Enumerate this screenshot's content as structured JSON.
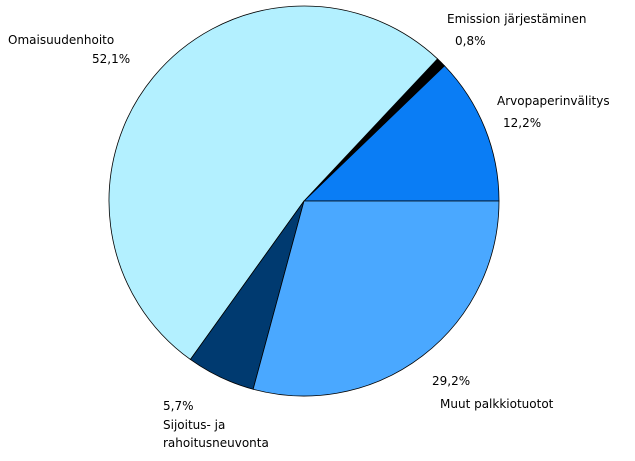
{
  "chart_data": {
    "type": "pie",
    "categories": [
      "Arvopaperinvälitys",
      "Emission järjestäminen",
      "Omaisuudenhoito",
      "Sijoitus- ja rahoitusneuvonta",
      "Muut palkkiotuotot"
    ],
    "values": [
      12.2,
      0.8,
      52.1,
      5.7,
      29.2
    ],
    "value_labels": [
      "12,2%",
      "0,8%",
      "52,1%",
      "5,7%",
      "29,2%"
    ],
    "colors": [
      "#0a7df5",
      "#000000",
      "#b3f0ff",
      "#003a70",
      "#4aa8ff"
    ]
  }
}
